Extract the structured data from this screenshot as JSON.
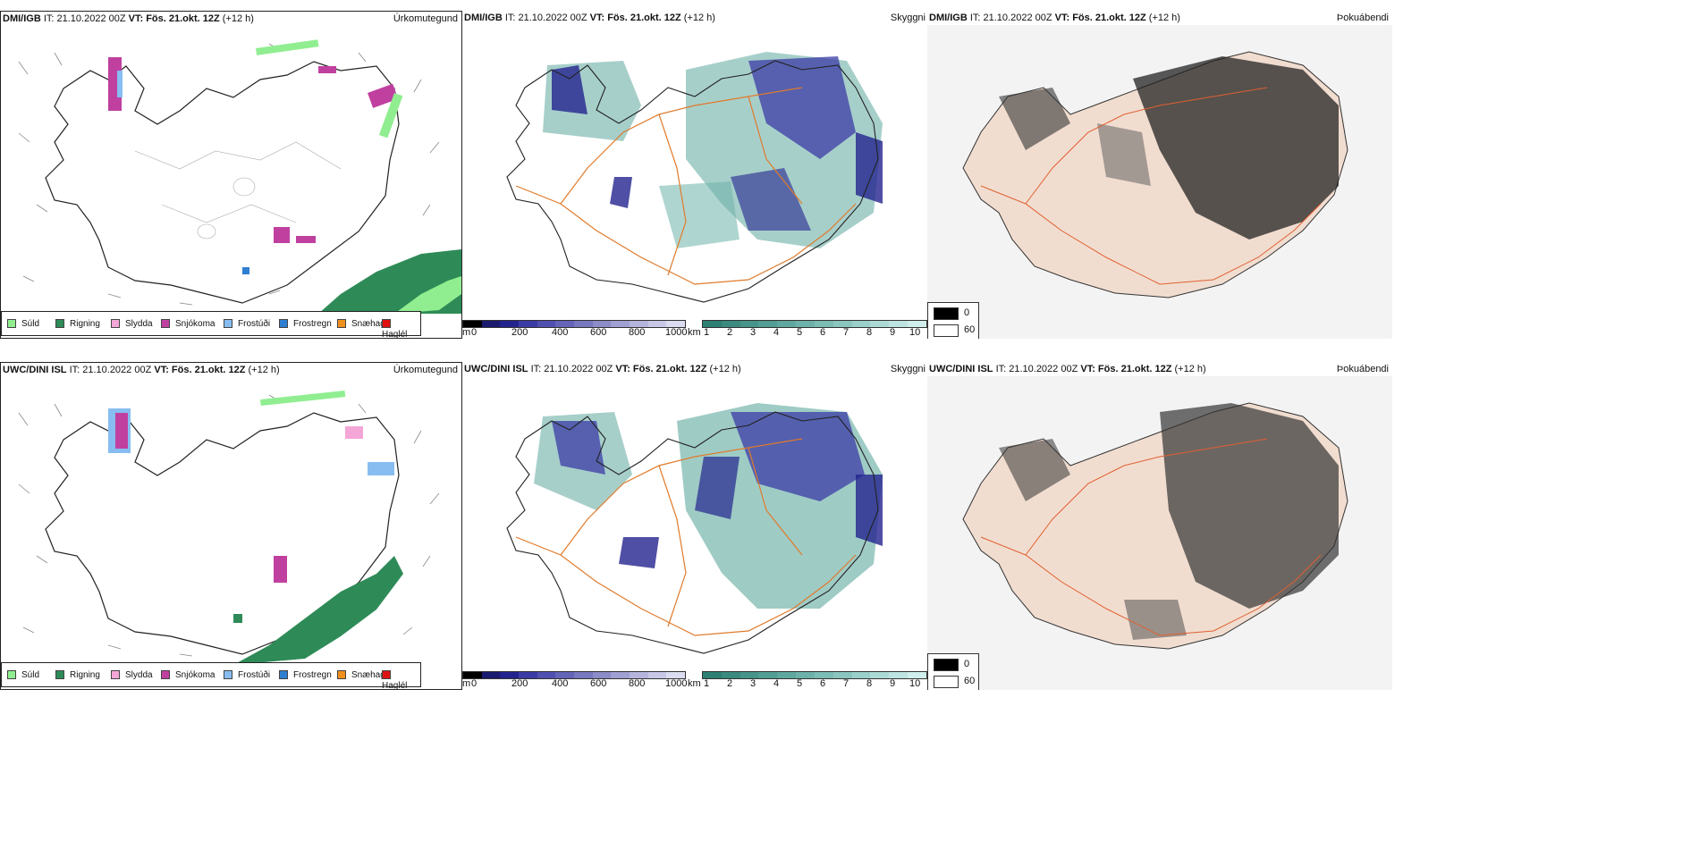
{
  "rows": [
    {
      "model": "DMI/IGB",
      "it": "IT: 21.10.2022 00Z",
      "vt": "VT: Fös. 21.okt. 12Z",
      "lead": "(+12 h)"
    },
    {
      "model": "UWC/DINI ISL",
      "it": "IT: 21.10.2022 00Z",
      "vt": "VT: Fös. 21.okt. 12Z",
      "lead": "(+12 h)"
    }
  ],
  "panels": {
    "precip_type_title": "Úrkomutegund",
    "cloud_title": "Skyggni",
    "fog_title": "Þokuábendi"
  },
  "precip_legend": [
    {
      "label": "Súld",
      "color": "#90ee90"
    },
    {
      "label": "Rigning",
      "color": "#2e8b57"
    },
    {
      "label": "Slydda",
      "color": "#f4a6d7"
    },
    {
      "label": "Snjókoma",
      "color": "#c040a0"
    },
    {
      "label": "Frostúði",
      "color": "#87bdf0"
    },
    {
      "label": "Frostregn",
      "color": "#2f7fd1"
    },
    {
      "label": "Snæhagl",
      "color": "#f0901c"
    },
    {
      "label": "Haglél",
      "color": "#e01010"
    }
  ],
  "cloud_scale": {
    "unit_m": "m",
    "m_ticks": [
      "0",
      "200",
      "400",
      "600",
      "800",
      "1000"
    ],
    "unit_km": "km",
    "km_ticks": [
      "1",
      "2",
      "3",
      "4",
      "5",
      "6",
      "7",
      "8",
      "9",
      "10"
    ],
    "m_colors": [
      "#000000",
      "#1a1a6e",
      "#23238f",
      "#3b3ba6",
      "#5050b0",
      "#6464b8",
      "#7878c0",
      "#8c8cc8",
      "#a0a0d2",
      "#b4b4dc",
      "#c8c8e6",
      "#dcdcf0"
    ],
    "km_colors": [
      "#2e7f74",
      "#3a8a80",
      "#46948a",
      "#529e94",
      "#5fa89f",
      "#6db2aa",
      "#7bbcb4",
      "#8ac6bf",
      "#9ad0ca",
      "#abdad5",
      "#bde4e0",
      "#d0eeeb"
    ]
  },
  "fog_scale": {
    "labels": [
      "0",
      "60"
    ]
  }
}
